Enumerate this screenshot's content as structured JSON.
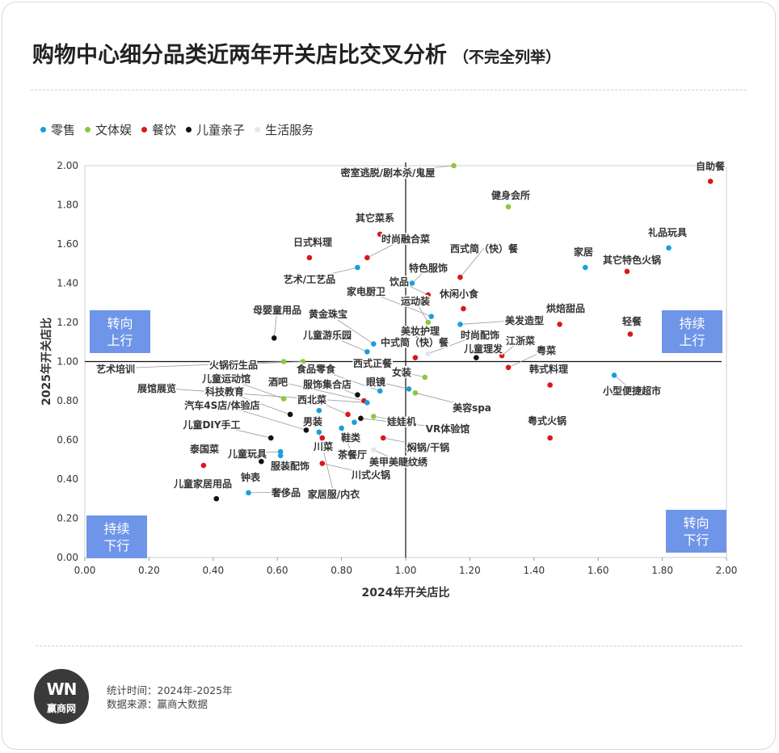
{
  "title": "购物中心细分品类近两年开关店比交叉分析",
  "subtitle": "（不完全列举）",
  "colors": {
    "零售": "#1aa0d8",
    "文体娱": "#8dc63f",
    "餐饮": "#d7191c",
    "儿童亲子": "#111111",
    "生活服务": "#dde8f0",
    "quadrant_box": "#6f95e8"
  },
  "quadrants": {
    "top_left": [
      "转向",
      "上行"
    ],
    "top_right": [
      "持续",
      "上行"
    ],
    "bottom_left": [
      "持续",
      "下行"
    ],
    "bottom_right": [
      "转向",
      "下行"
    ]
  },
  "footer": {
    "time": "统计时间：2024年-2025年",
    "source": "数据来源：赢商大数据"
  },
  "logo": {
    "mark": "WN",
    "name": "赢商网"
  },
  "chart_data": {
    "type": "scatter",
    "xlabel": "2024年开关店比",
    "ylabel": "2025年开关店比",
    "xlim": [
      0,
      2
    ],
    "ylim": [
      0,
      2
    ],
    "xticks": [
      "0.00",
      "0.20",
      "0.40",
      "0.60",
      "0.80",
      "1.00",
      "1.20",
      "1.40",
      "1.60",
      "1.80",
      "2.00"
    ],
    "yticks": [
      "0.00",
      "0.20",
      "0.40",
      "0.60",
      "0.80",
      "1.00",
      "1.20",
      "1.40",
      "1.60",
      "1.80",
      "2.00"
    ],
    "reference_lines": {
      "x": 1.0,
      "y": 1.0
    },
    "legend": [
      "零售",
      "文体娱",
      "餐饮",
      "儿童亲子",
      "生活服务"
    ],
    "points": [
      {
        "label": "密室逃脱/剧本杀/鬼屋",
        "category": "文体娱",
        "x": 1.15,
        "y": 2.0
      },
      {
        "label": "自助餐",
        "category": "餐饮",
        "x": 1.95,
        "y": 1.92
      },
      {
        "label": "健身会所",
        "category": "文体娱",
        "x": 1.32,
        "y": 1.79
      },
      {
        "label": "礼品玩具",
        "category": "零售",
        "x": 1.82,
        "y": 1.58
      },
      {
        "label": "家居",
        "category": "零售",
        "x": 1.56,
        "y": 1.48
      },
      {
        "label": "其它特色火锅",
        "category": "餐饮",
        "x": 1.69,
        "y": 1.46
      },
      {
        "label": "其它菜系",
        "category": "餐饮",
        "x": 0.92,
        "y": 1.65
      },
      {
        "label": "时尚融合菜",
        "category": "餐饮",
        "x": 0.88,
        "y": 1.53
      },
      {
        "label": "日式料理",
        "category": "餐饮",
        "x": 0.7,
        "y": 1.53
      },
      {
        "label": "艺术/工艺品",
        "category": "零售",
        "x": 0.85,
        "y": 1.48
      },
      {
        "label": "西式简（快）餐",
        "category": "餐饮",
        "x": 1.17,
        "y": 1.43
      },
      {
        "label": "特色服饰",
        "category": "零售",
        "x": 1.02,
        "y": 1.4
      },
      {
        "label": "饮品",
        "category": "餐饮",
        "x": 1.07,
        "y": 1.34
      },
      {
        "label": "休闲小食",
        "category": "餐饮",
        "x": 1.18,
        "y": 1.27
      },
      {
        "label": "家电厨卫",
        "category": "零售",
        "x": 1.08,
        "y": 1.23
      },
      {
        "label": "运动装",
        "category": "文体娱",
        "x": 1.07,
        "y": 1.2
      },
      {
        "label": "美发造型",
        "category": "零售",
        "x": 1.17,
        "y": 1.19
      },
      {
        "label": "烘焙甜品",
        "category": "餐饮",
        "x": 1.48,
        "y": 1.19
      },
      {
        "label": "轻餐",
        "category": "餐饮",
        "x": 1.7,
        "y": 1.14
      },
      {
        "label": "母婴童用品",
        "category": "儿童亲子",
        "x": 0.59,
        "y": 1.12
      },
      {
        "label": "黄金珠宝",
        "category": "零售",
        "x": 0.9,
        "y": 1.09
      },
      {
        "label": "美妆护理",
        "category": "零售",
        "x": 1.04,
        "y": 1.12
      },
      {
        "label": "中式简（快）餐",
        "category": "餐饮",
        "x": 1.03,
        "y": 1.02
      },
      {
        "label": "儿童游乐园",
        "category": "零售",
        "x": 0.88,
        "y": 1.05
      },
      {
        "label": "时尚配饰",
        "category": "生活服务",
        "x": 1.07,
        "y": 1.04
      },
      {
        "label": "儿童理发",
        "category": "儿童亲子",
        "x": 1.22,
        "y": 1.02
      },
      {
        "label": "江浙菜",
        "category": "餐饮",
        "x": 1.3,
        "y": 1.03
      },
      {
        "label": "粤菜",
        "category": "餐饮",
        "x": 1.32,
        "y": 0.97
      },
      {
        "label": "韩式料理",
        "category": "餐饮",
        "x": 1.45,
        "y": 0.88
      },
      {
        "label": "小型便捷超市",
        "category": "零售",
        "x": 1.65,
        "y": 0.93
      },
      {
        "label": "艺术培训",
        "category": "文体娱",
        "x": 0.62,
        "y": 1.0
      },
      {
        "label": "火锅衍生品",
        "category": "文体娱",
        "x": 0.68,
        "y": 1.0
      },
      {
        "label": "西式正餐",
        "category": "生活服务",
        "x": 0.9,
        "y": 0.97
      },
      {
        "label": "食品零食",
        "category": "零售",
        "x": 0.92,
        "y": 0.85
      },
      {
        "label": "女装",
        "category": "文体娱",
        "x": 1.06,
        "y": 0.92
      },
      {
        "label": "眼镜",
        "category": "零售",
        "x": 1.01,
        "y": 0.86
      },
      {
        "label": "服饰集合店",
        "category": "儿童亲子",
        "x": 0.85,
        "y": 0.83
      },
      {
        "label": "儿童运动馆",
        "category": "文体娱",
        "x": 0.62,
        "y": 0.81
      },
      {
        "label": "酒吧",
        "category": "餐饮",
        "x": 0.87,
        "y": 0.8
      },
      {
        "label": "美容spa",
        "category": "文体娱",
        "x": 1.03,
        "y": 0.84
      },
      {
        "label": "展馆展览",
        "category": "零售",
        "x": 0.88,
        "y": 0.79
      },
      {
        "label": "科技教育",
        "category": "儿童亲子",
        "x": 0.64,
        "y": 0.73
      },
      {
        "label": "西北菜",
        "category": "餐饮",
        "x": 0.82,
        "y": 0.73
      },
      {
        "label": "汽车4S店/体验店",
        "category": "儿童亲子",
        "x": 0.69,
        "y": 0.65
      },
      {
        "label": "儿童DIY手工",
        "category": "儿童亲子",
        "x": 0.58,
        "y": 0.61
      },
      {
        "label": "男装",
        "category": "零售",
        "x": 0.73,
        "y": 0.75
      },
      {
        "label": "娃娃机",
        "category": "文体娱",
        "x": 0.9,
        "y": 0.72
      },
      {
        "label": "VR体验馆",
        "category": "儿童亲子",
        "x": 0.86,
        "y": 0.71
      },
      {
        "label": "鞋类",
        "category": "零售",
        "x": 0.84,
        "y": 0.69
      },
      {
        "label": "焖锅/干锅",
        "category": "餐饮",
        "x": 0.93,
        "y": 0.61
      },
      {
        "label": "川菜",
        "category": "餐饮",
        "x": 0.74,
        "y": 0.61
      },
      {
        "label": "茶餐厅",
        "category": "零售",
        "x": 0.8,
        "y": 0.66
      },
      {
        "label": "美甲美睫纹绣",
        "category": "生活服务",
        "x": 0.9,
        "y": 0.55
      },
      {
        "label": "泰国菜",
        "category": "餐饮",
        "x": 0.37,
        "y": 0.47
      },
      {
        "label": "儿童玩具",
        "category": "零售",
        "x": 0.61,
        "y": 0.54
      },
      {
        "label": "服装配饰",
        "category": "零售",
        "x": 0.61,
        "y": 0.52
      },
      {
        "label": "川式火锅",
        "category": "餐饮",
        "x": 0.74,
        "y": 0.48
      },
      {
        "label": "钟表",
        "category": "儿童亲子",
        "x": 0.55,
        "y": 0.49
      },
      {
        "label": "粤式火锅",
        "category": "餐饮",
        "x": 1.45,
        "y": 0.61
      },
      {
        "label": "儿童家居用品",
        "category": "儿童亲子",
        "x": 0.41,
        "y": 0.3
      },
      {
        "label": "奢侈品",
        "category": "零售",
        "x": 0.51,
        "y": 0.33
      },
      {
        "label": "家居服/内衣",
        "category": "零售",
        "x": 0.73,
        "y": 0.64
      }
    ]
  }
}
